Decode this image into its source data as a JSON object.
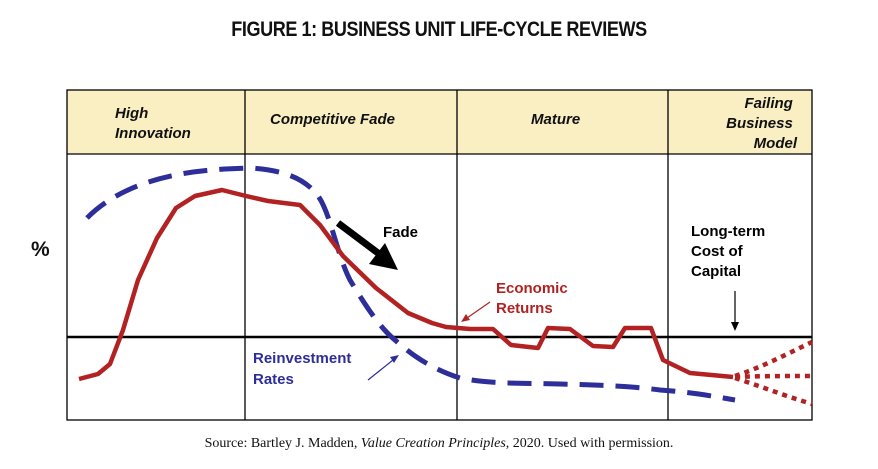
{
  "title": "FIGURE 1: BUSINESS UNIT LIFE-CYCLE REVIEWS",
  "phases": [
    {
      "lines": [
        "High",
        "Innovation"
      ]
    },
    {
      "lines": [
        "Competitive Fade"
      ]
    },
    {
      "lines": [
        "Mature"
      ]
    },
    {
      "lines": [
        "Failing",
        "Business",
        "Model"
      ]
    }
  ],
  "y_axis_label": "%",
  "labels": {
    "fade": "Fade",
    "cost_of_capital": [
      "Long-term",
      "Cost of",
      "Capital"
    ],
    "economic_returns": [
      "Economic",
      "Returns"
    ],
    "reinvestment_rates": [
      "Reinvestment",
      "Rates"
    ]
  },
  "source": {
    "prefix": "Source: Bartley J. Madden, ",
    "book": "Value Creation Principles",
    "suffix": ", 2020. Used with permission."
  },
  "colors": {
    "header_fill": "#f9efc3",
    "economic_returns": "#b22222",
    "reinvestment_rates": "#2e2e9a",
    "cost_of_capital_line": "#000000",
    "frame": "#000000"
  }
}
